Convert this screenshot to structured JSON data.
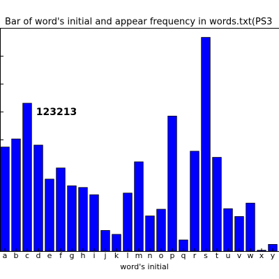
{
  "chart_data": {
    "type": "bar",
    "title": "Bar of word's initial and appear frequency in words.txt(PS3",
    "xlabel": "word's initial",
    "ylabel": "",
    "categories": [
      "a",
      "b",
      "c",
      "d",
      "e",
      "f",
      "g",
      "h",
      "i",
      "j",
      "k",
      "l",
      "m",
      "n",
      "o",
      "p",
      "q",
      "r",
      "s",
      "t",
      "u",
      "v",
      "w",
      "x",
      "y"
    ],
    "values": [
      18650,
      20100,
      26500,
      19000,
      12900,
      14900,
      11700,
      11400,
      10100,
      3700,
      3000,
      10400,
      16000,
      6300,
      7500,
      24200,
      2000,
      17900,
      38300,
      16800,
      7600,
      6200,
      8600,
      150,
      1200
    ],
    "ylim": [
      0,
      40000
    ],
    "bar_color": "#0000ff",
    "edge_color": "#000000",
    "grid": false,
    "annotations": [
      {
        "text": "123213",
        "x": 2.8,
        "y": 25000
      }
    ]
  }
}
